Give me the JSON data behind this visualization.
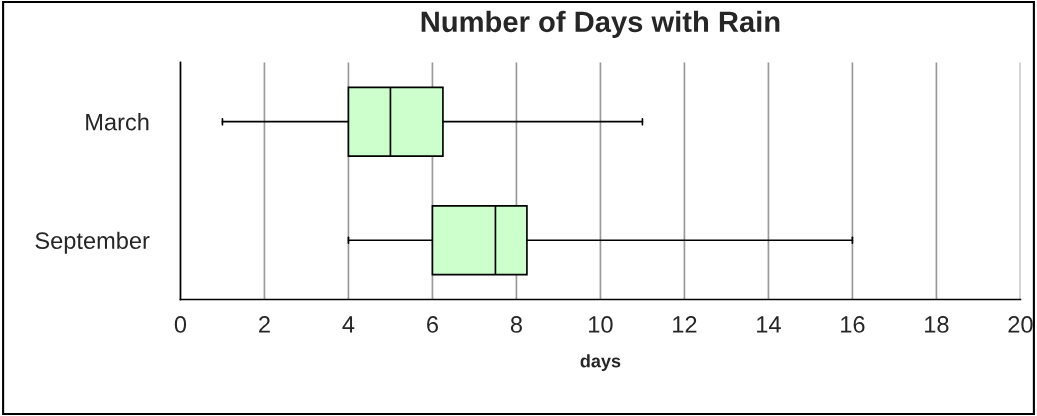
{
  "chart_data": {
    "type": "box",
    "title": "Number of Days with Rain",
    "xlabel": "days",
    "orientation": "horizontal",
    "categories": [
      "March",
      "September"
    ],
    "boxes": [
      {
        "low": 1,
        "q1": 4,
        "median": 5,
        "q3": 6.25,
        "high": 11
      },
      {
        "low": 4,
        "q1": 6,
        "median": 7.5,
        "q3": 8.25,
        "high": 16
      }
    ],
    "color": "#ccffcc",
    "xlim": [
      0,
      20
    ],
    "xticks": [
      0,
      2,
      4,
      6,
      8,
      10,
      12,
      14,
      16,
      18,
      20
    ],
    "grid": "x"
  }
}
